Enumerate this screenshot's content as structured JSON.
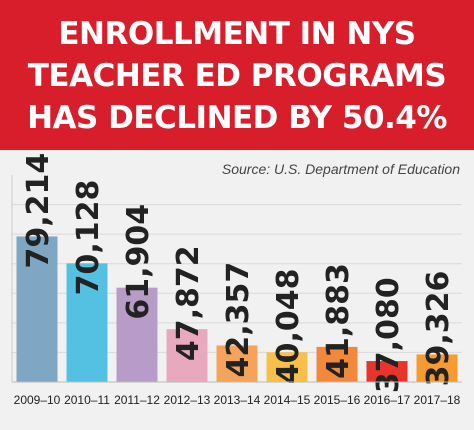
{
  "banner": {
    "lines": [
      "ENROLLMENT IN NYS",
      "TEACHER ED PROGRAMS",
      "HAS DECLINED BY 50.4%"
    ],
    "background": "#d81e2a"
  },
  "source": "Source: U.S. Department of Education",
  "chart_data": {
    "type": "bar",
    "title": "ENROLLMENT IN NYS TEACHER ED PROGRAMS HAS DECLINED BY 50.4%",
    "xlabel": "",
    "ylabel": "",
    "categories": [
      "2009–10",
      "2010–11",
      "2011–12",
      "2012–13",
      "2013–14",
      "2014–15",
      "2015–16",
      "2016–17",
      "2017–18"
    ],
    "values": [
      79214,
      70128,
      61904,
      47872,
      42357,
      40048,
      41883,
      37080,
      39326
    ],
    "value_labels": [
      "79,214",
      "70,128",
      "61,904",
      "47,872",
      "42,357",
      "40,048",
      "41,883",
      "37,080",
      "39,326"
    ],
    "colors": [
      "#7fa6c3",
      "#55c1e2",
      "#b79cc8",
      "#e8a9bf",
      "#f4a35a",
      "#f8c04a",
      "#f2883c",
      "#e8352b",
      "#f79a30"
    ],
    "ylim": [
      30000,
      100000
    ],
    "grid": true
  }
}
